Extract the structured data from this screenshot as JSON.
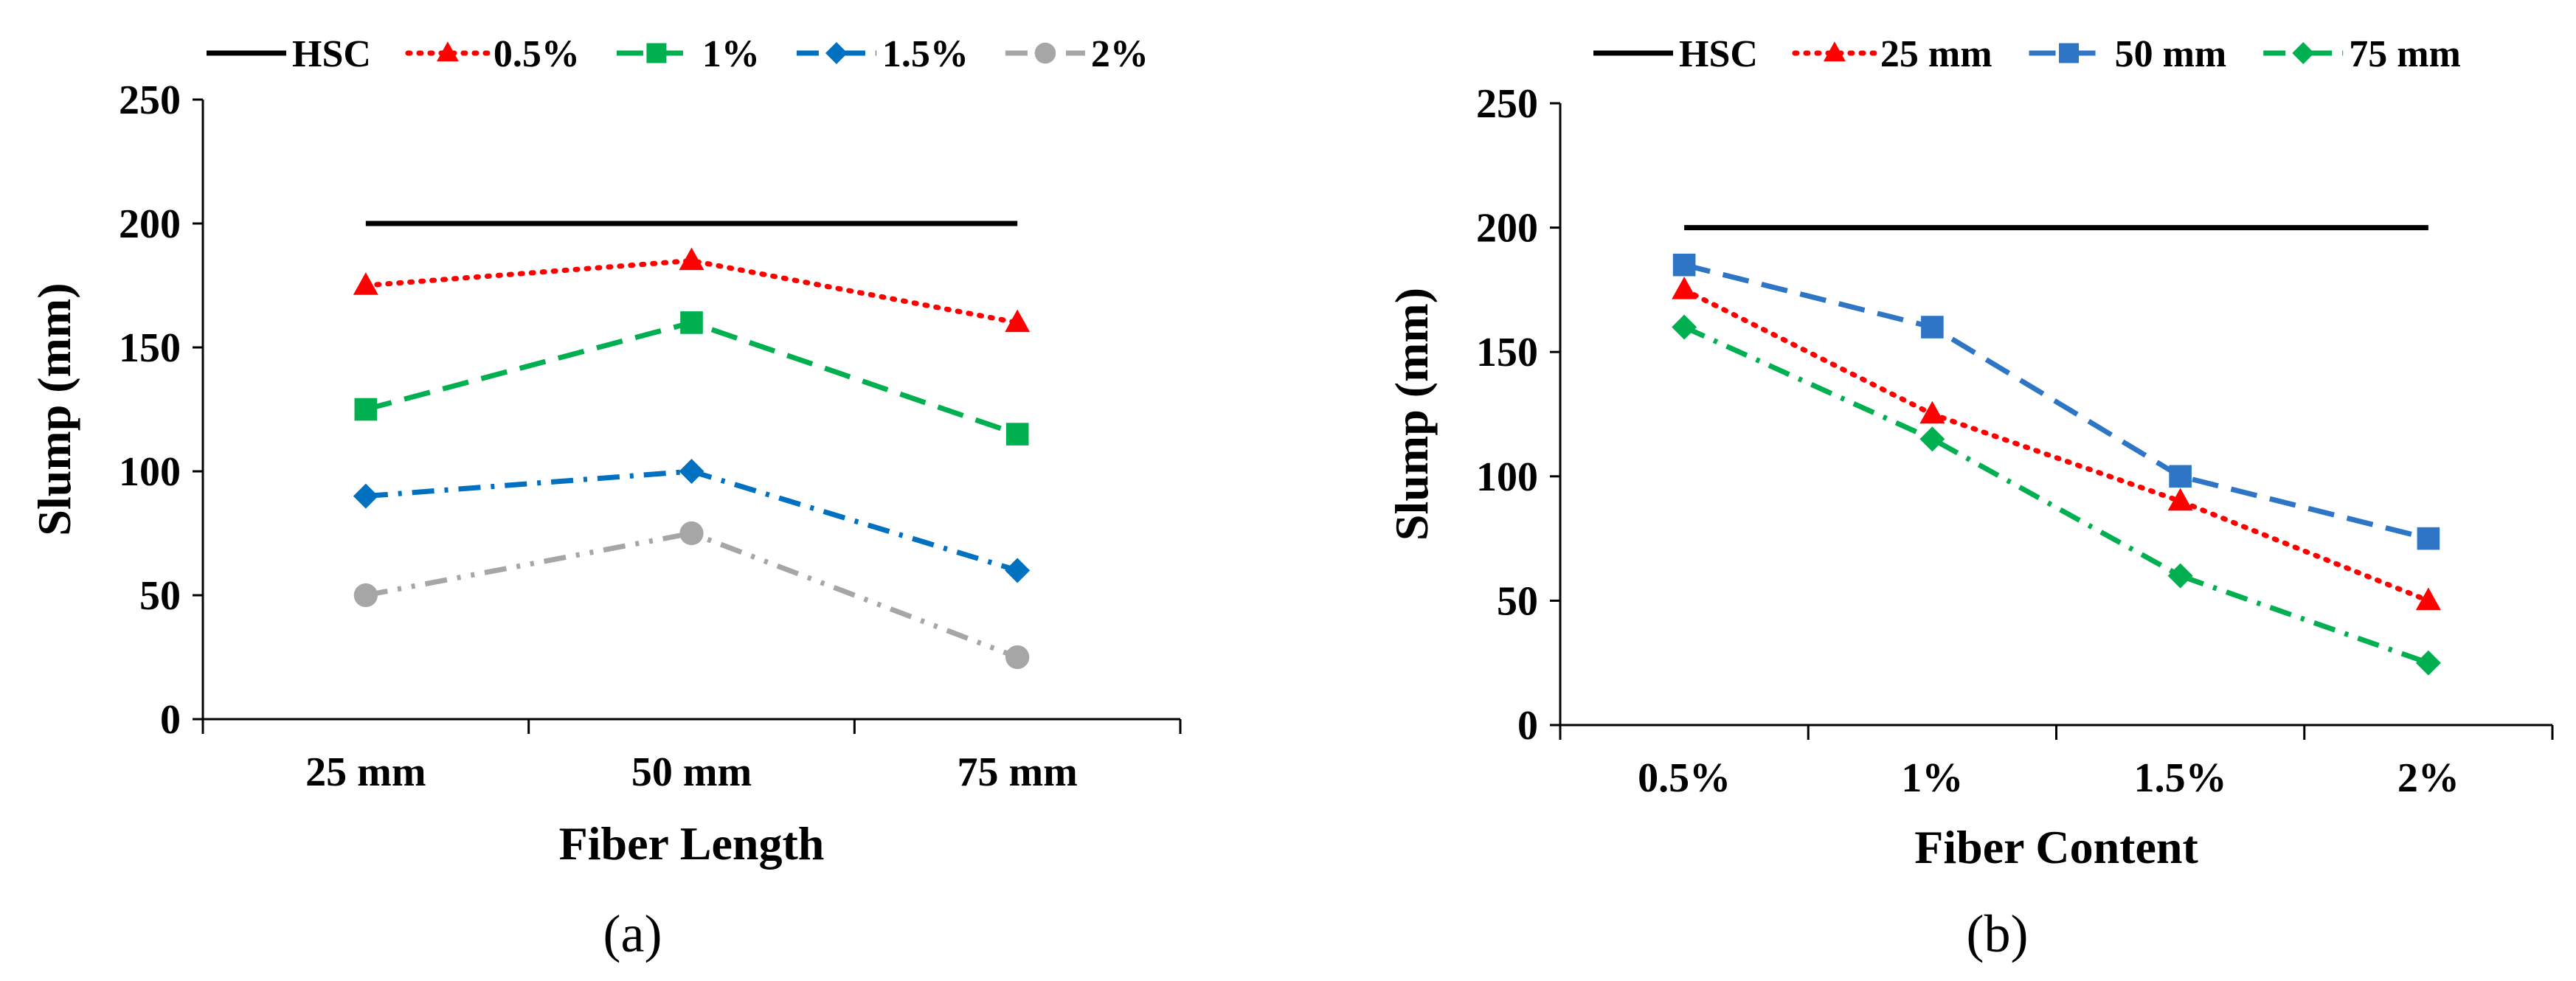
{
  "chart_data": [
    {
      "type": "line",
      "panel_label": "(a)",
      "categories": [
        "25 mm",
        "50 mm",
        "75 mm"
      ],
      "xlabel": "Fiber Length",
      "ylabel": "Slump (mm)",
      "ylim": [
        0,
        250
      ],
      "yticks": [
        0,
        50,
        100,
        150,
        200,
        250
      ],
      "grid": false,
      "legend_position": "top",
      "series": [
        {
          "name": "HSC",
          "values": [
            200,
            200,
            200
          ],
          "color": "#000000",
          "dash": "solid",
          "marker": "none"
        },
        {
          "name": "0.5%",
          "values": [
            175,
            185,
            160
          ],
          "color": "#ff0000",
          "dash": "dotted",
          "marker": "triangle"
        },
        {
          "name": "1%",
          "values": [
            125,
            160,
            115
          ],
          "color": "#00b050",
          "dash": "dashed",
          "marker": "square"
        },
        {
          "name": "1.5%",
          "values": [
            90,
            100,
            60
          ],
          "color": "#0070c0",
          "dash": "dash-dot",
          "marker": "diamond"
        },
        {
          "name": "2%",
          "values": [
            50,
            75,
            25
          ],
          "color": "#a6a6a6",
          "dash": "dash-dot-dot",
          "marker": "circle"
        }
      ]
    },
    {
      "type": "line",
      "panel_label": "(b)",
      "categories": [
        "0.5%",
        "1%",
        "1.5%",
        "2%"
      ],
      "xlabel": "Fiber Content",
      "ylabel": "Slump (mm)",
      "ylim": [
        0,
        250
      ],
      "yticks": [
        0,
        50,
        100,
        150,
        200,
        250
      ],
      "grid": false,
      "legend_position": "top",
      "series": [
        {
          "name": "HSC",
          "values": [
            200,
            200,
            200,
            200
          ],
          "color": "#000000",
          "dash": "solid",
          "marker": "none"
        },
        {
          "name": "25 mm",
          "values": [
            175,
            125,
            90,
            50
          ],
          "color": "#ff0000",
          "dash": "dotted",
          "marker": "triangle"
        },
        {
          "name": "50 mm",
          "values": [
            185,
            160,
            100,
            75
          ],
          "color": "#2e75c6",
          "dash": "dashed",
          "marker": "square"
        },
        {
          "name": "75 mm",
          "values": [
            160,
            115,
            60,
            25
          ],
          "color": "#00b050",
          "dash": "dash-dot",
          "marker": "diamond"
        }
      ]
    }
  ]
}
